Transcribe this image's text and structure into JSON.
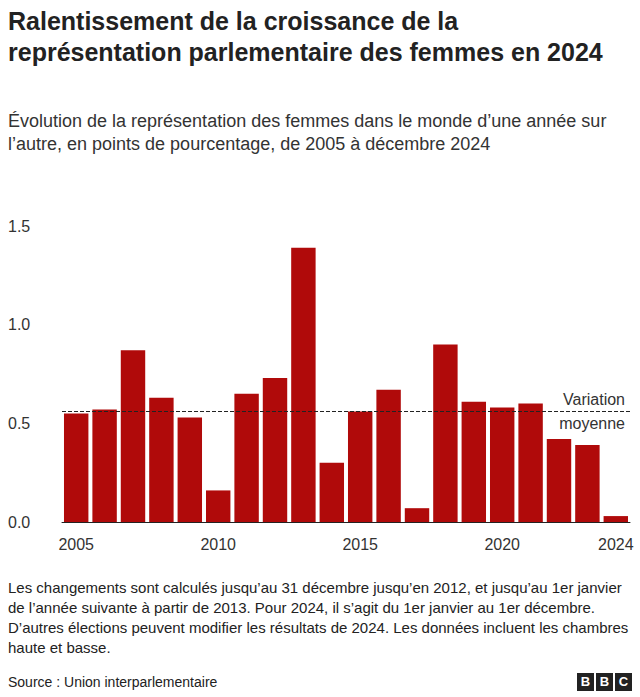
{
  "chart_data": {
    "type": "bar",
    "title": "Ralentissement de la croissance de la représentation parlementaire des femmes en 2024",
    "subtitle": "Évolution de la représentation des femmes dans le monde d’une année sur l’autre, en points de pourcentage, de 2005 à décembre 2024",
    "categories": [
      "2005",
      null,
      null,
      null,
      null,
      "2010",
      null,
      null,
      null,
      null,
      "2015",
      null,
      null,
      null,
      null,
      "2020",
      null,
      null,
      null,
      "2024"
    ],
    "values": [
      0.55,
      0.57,
      0.87,
      0.63,
      0.53,
      0.16,
      0.65,
      0.73,
      1.39,
      0.3,
      0.56,
      0.67,
      0.07,
      0.9,
      0.61,
      0.58,
      0.6,
      0.42,
      0.39,
      0.03
    ],
    "color": "#b00a0a",
    "ylim": [
      0,
      1.5
    ],
    "yticks": [
      {
        "value": 0,
        "label": "0.0"
      },
      0.5,
      {
        "value": 1,
        "label": "1.0"
      },
      1.5
    ],
    "grid": false,
    "average": {
      "value": 0.56,
      "label": "Variation moyenne"
    },
    "note": "Les changements sont calculés jusqu’au 31 décembre jusqu’en 2012, et jusqu’au 1er janvier de l’année suivante à partir de 2013. Pour 2024, il s’agit du 1er janvier au 1er décembre. D’autres élections peuvent modifier les résultats de 2024. Les données incluent les chambres haute et basse.",
    "source": "Source : Union interparlementaire",
    "logo": "BBC"
  }
}
